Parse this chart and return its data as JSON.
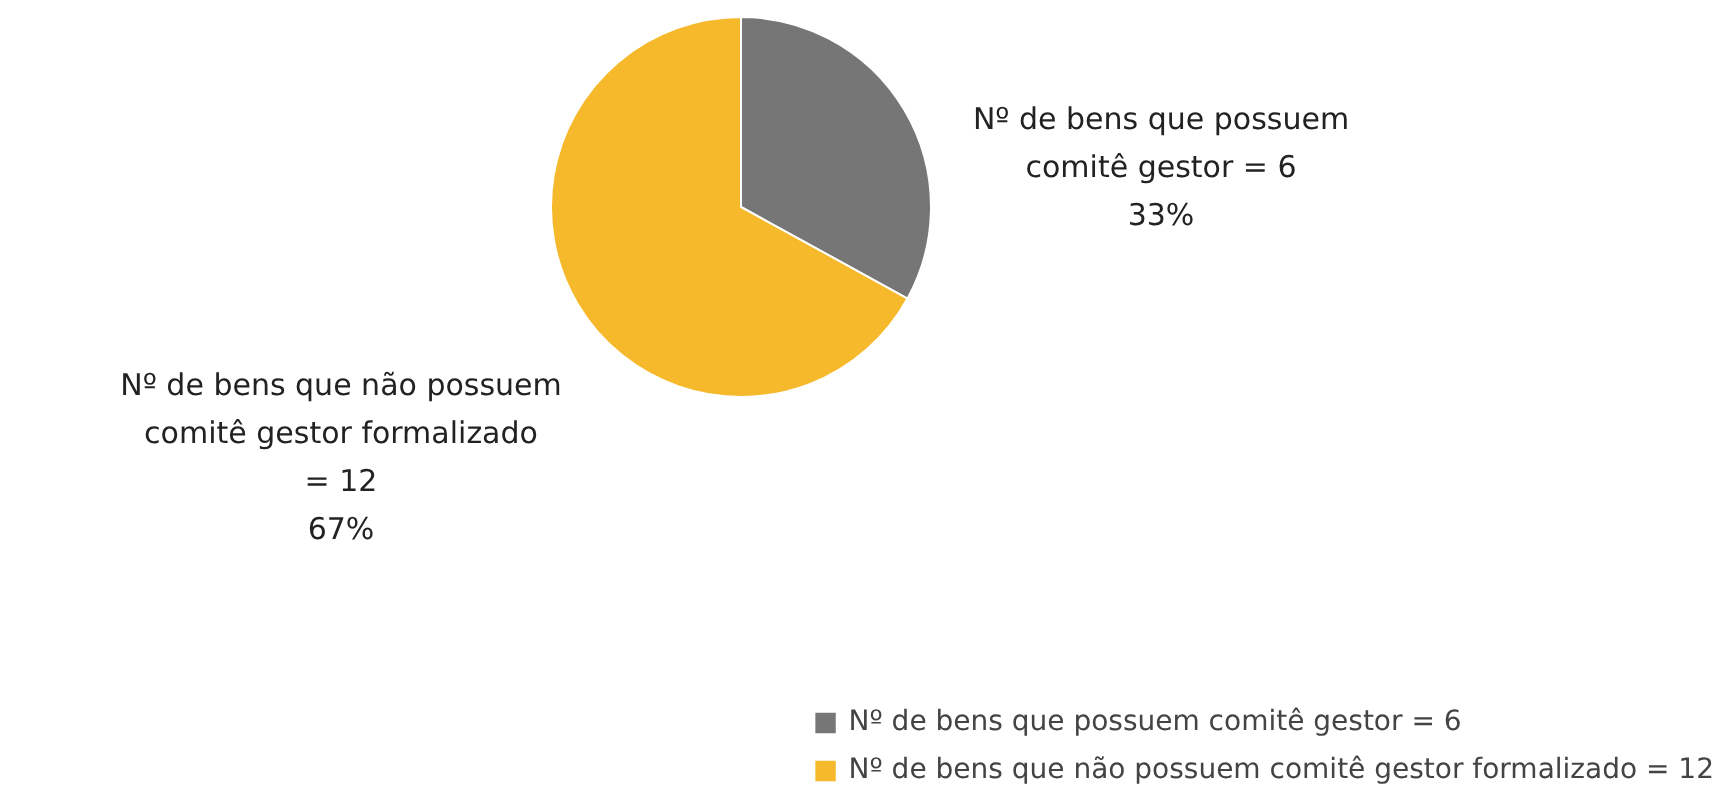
{
  "chart_data": {
    "type": "pie",
    "categories": [
      "Nº de bens que possuem comitê gestor = 6",
      "Nº de bens que não possuem comitê gestor formalizado = 12"
    ],
    "values": [
      33,
      67
    ],
    "colors": [
      "#767676",
      "#f6b92b"
    ],
    "value_labels": [
      "33%",
      "67%"
    ],
    "legend": "bottom right"
  }
}
